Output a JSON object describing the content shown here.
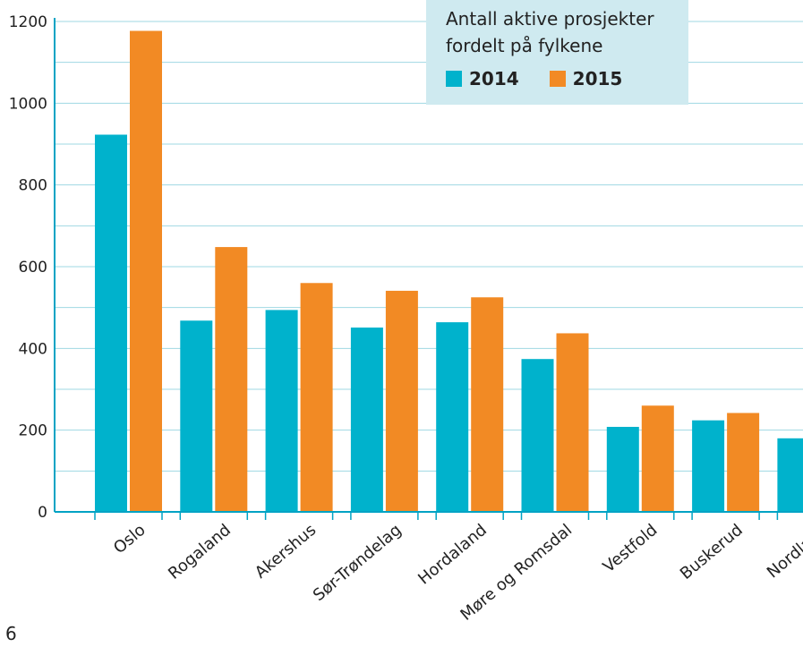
{
  "chart_data": {
    "type": "bar",
    "title": "Antall aktive prosjekter fordelt på fylkene",
    "categories": [
      "Oslo",
      "Rogaland",
      "Akershus",
      "Sør-Trøndelag",
      "Hordaland",
      "Møre og Romsdal",
      "Vestfold",
      "Buskerud",
      "Nordland"
    ],
    "series": [
      {
        "name": "2014",
        "color": "#00b2cc",
        "values": [
          923,
          468,
          494,
          451,
          464,
          374,
          208,
          224,
          180
        ]
      },
      {
        "name": "2015",
        "color": "#f28a24",
        "values": [
          1177,
          648,
          560,
          541,
          525,
          437,
          260,
          242,
          null
        ]
      }
    ],
    "yticks": [
      0,
      200,
      400,
      600,
      800,
      1000,
      1200
    ],
    "ylim": [
      0,
      1200
    ],
    "grid": true,
    "legend_position": "top-right",
    "xlabel": "",
    "ylabel": ""
  },
  "page_number": "6"
}
